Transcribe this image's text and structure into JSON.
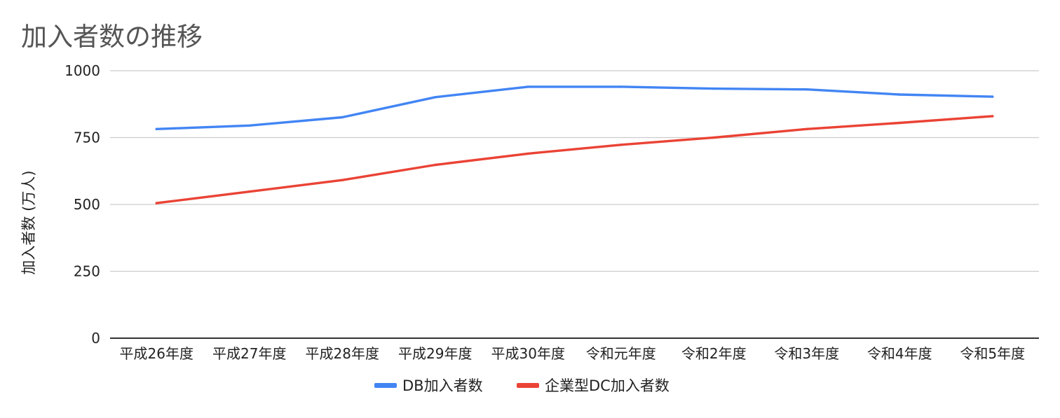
{
  "chart_data": {
    "type": "line",
    "title": "加入者数の推移",
    "xlabel": "",
    "ylabel": "加入者数 (万人)",
    "ylim": [
      0,
      1000
    ],
    "yticks": [
      0,
      250,
      500,
      750,
      1000
    ],
    "ytick_labels": [
      "0",
      "250",
      "500",
      "750",
      "1000"
    ],
    "grid": true,
    "legend_position": "bottom",
    "categories": [
      "平成26年度",
      "平成27年度",
      "平成28年度",
      "平成29年度",
      "平成30年度",
      "令和元年度",
      "令和2年度",
      "令和3年度",
      "令和4年度",
      "令和5年度"
    ],
    "series": [
      {
        "name": "DB加入者数",
        "color": "#4285f4",
        "values": [
          782,
          795,
          826,
          901,
          940,
          940,
          933,
          930,
          911,
          903
        ]
      },
      {
        "name": "企業型DC加入者数",
        "color": "#ea4335",
        "values": [
          505,
          548,
          591,
          648,
          690,
          723,
          750,
          782,
          805,
          830
        ]
      }
    ]
  }
}
